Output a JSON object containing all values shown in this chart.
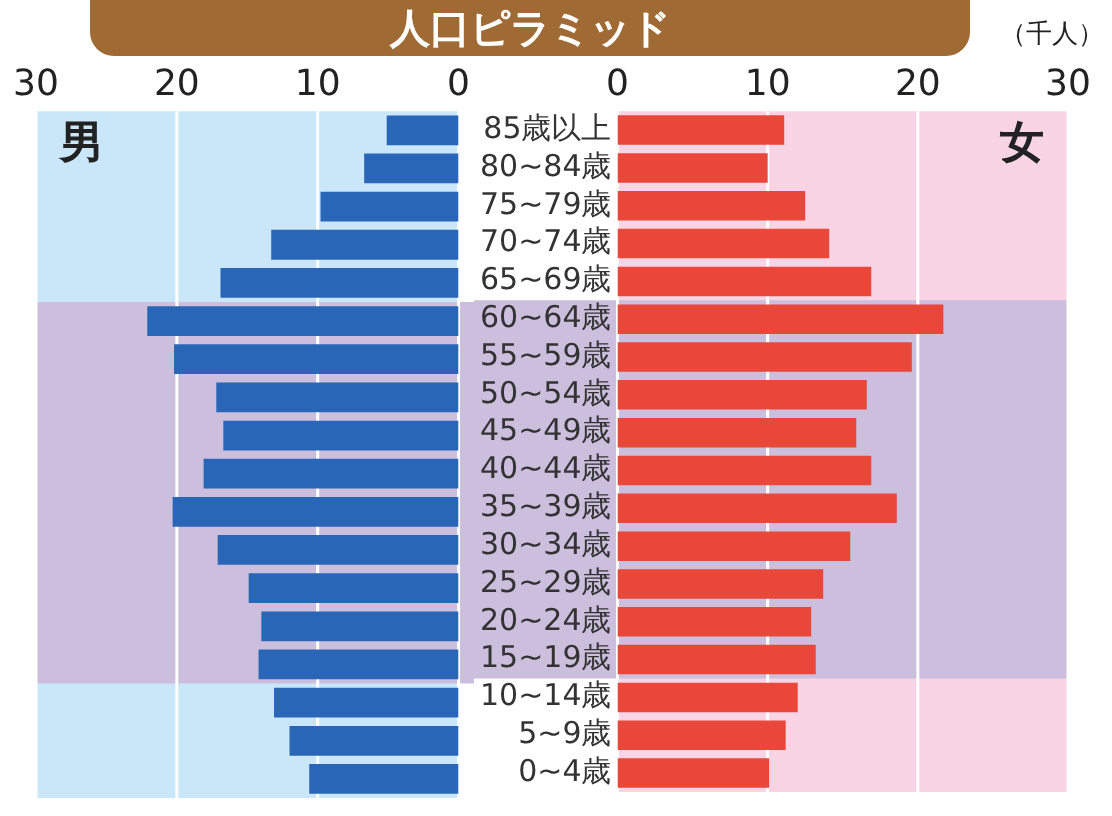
{
  "chart_data": [
    {
      "type": "bar",
      "title": "人口ピラミッド",
      "orientation": "horizontal",
      "categories": [
        "85歳以上",
        "80~84歳",
        "75~79歳",
        "70~74歳",
        "65~69歳",
        "60~64歳",
        "55~59歳",
        "50~54歳",
        "45~49歳",
        "40~44歳",
        "35~39歳",
        "30~34歳",
        "25~29歳",
        "20~24歳",
        "15~19歳",
        "10~14歳",
        "5~9歳",
        "0~4歳"
      ],
      "series": [
        {
          "name": "男",
          "color": "#2a66b8",
          "values": [
            5.1,
            6.7,
            9.8,
            13.3,
            16.9,
            22.1,
            20.2,
            17.2,
            16.7,
            18.1,
            20.3,
            17.1,
            14.9,
            14.0,
            14.2,
            13.1,
            12.0,
            10.6
          ]
        }
      ],
      "xlim": [
        30,
        0
      ],
      "xticks": [
        30,
        20,
        10,
        0
      ],
      "grid": "x",
      "tick_labels": "x",
      "legend": false,
      "bands": [
        {
          "axis": "x",
          "from": 30,
          "to": 0,
          "color": "#c9e7f8"
        },
        {
          "axis": "y",
          "from": "60~64歳",
          "to": "15~19歳",
          "color": "#cbbfdd"
        }
      ]
    },
    {
      "type": "bar",
      "orientation": "horizontal",
      "categories": [
        "85歳以上",
        "80~84歳",
        "75~79歳",
        "70~74歳",
        "65~69歳",
        "60~64歳",
        "55~59歳",
        "50~54歳",
        "45~49歳",
        "40~44歳",
        "35~39歳",
        "30~34歳",
        "25~29歳",
        "20~24歳",
        "15~19歳",
        "10~14歳",
        "5~9歳",
        "0~4歳"
      ],
      "series": [
        {
          "name": "女",
          "color": "#e8473a",
          "values": [
            11.1,
            10.0,
            12.5,
            14.1,
            16.9,
            21.7,
            19.6,
            16.6,
            15.9,
            16.9,
            18.6,
            15.5,
            13.7,
            12.9,
            13.2,
            12.0,
            11.2,
            10.1
          ]
        }
      ],
      "xlim": [
        0,
        30
      ],
      "xticks": [
        0,
        10,
        20,
        30
      ],
      "grid": "x",
      "legend": false,
      "bands": [
        {
          "axis": "x",
          "from": 0,
          "to": 30,
          "color": "#f9d4e4"
        },
        {
          "axis": "y",
          "from": "60~64歳",
          "to": "15~19歳",
          "color": "#cbbfdd"
        }
      ],
      "annotations": [
        "（千人）"
      ]
    }
  ]
}
